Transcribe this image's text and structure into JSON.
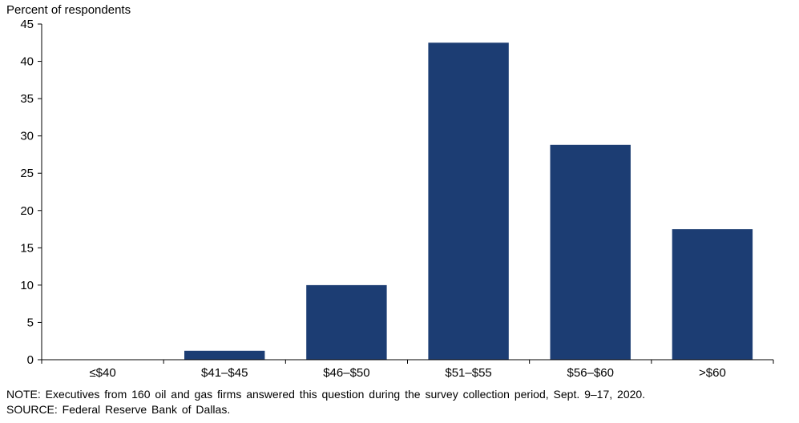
{
  "chart_data": {
    "type": "bar",
    "ylabel": "Percent of respondents",
    "categories": [
      "≤$40",
      "$41–$45",
      "$46–$50",
      "$51–$55",
      "$56–$60",
      ">$60"
    ],
    "series": [
      {
        "values": [
          0,
          1.2,
          10.0,
          42.5,
          28.8,
          17.5
        ]
      }
    ],
    "ylim": [
      0,
      45
    ],
    "yticks": [
      0,
      5,
      10,
      15,
      20,
      25,
      30,
      35,
      40,
      45
    ],
    "grid": false,
    "bar_color": "#1c3d73"
  },
  "notes": {
    "note": "NOTE: Executives from 160 oil and gas firms answered this question during the survey collection period, Sept. 9–17, 2020.",
    "source": "SOURCE: Federal Reserve Bank of Dallas."
  }
}
